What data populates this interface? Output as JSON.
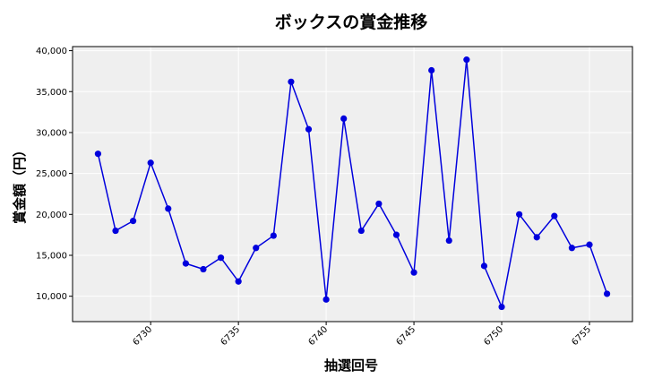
{
  "colors": {
    "line": "#0000dd",
    "marker": "#0000dd",
    "plot_background": "#efefef",
    "grid": "#ffffff"
  },
  "chart_data": {
    "type": "line",
    "title": "ボックスの賞金推移",
    "xlabel": "抽選回号",
    "ylabel": "賞金額（円）",
    "grid": true,
    "legend": "none",
    "xlim": [
      6725.55,
      6757.45
    ],
    "ylim": [
      6900,
      40500
    ],
    "x_ticks": [
      6730,
      6735,
      6740,
      6745,
      6750,
      6755
    ],
    "y_ticks": [
      10000,
      15000,
      20000,
      25000,
      30000,
      35000,
      40000
    ],
    "y_tick_labels": [
      "10,000",
      "15,000",
      "20,000",
      "25,000",
      "30,000",
      "35,000",
      "40,000"
    ],
    "x": [
      6727,
      6728,
      6729,
      6730,
      6731,
      6732,
      6733,
      6734,
      6735,
      6736,
      6737,
      6738,
      6739,
      6740,
      6741,
      6742,
      6743,
      6744,
      6745,
      6746,
      6747,
      6748,
      6749,
      6750,
      6751,
      6752,
      6753,
      6754,
      6755,
      6756
    ],
    "series": [
      {
        "values": [
          27400,
          18000,
          19200,
          26300,
          20700,
          14000,
          13300,
          14700,
          11800,
          15900,
          17400,
          36200,
          30400,
          9600,
          31700,
          18000,
          21300,
          17500,
          12900,
          37600,
          16800,
          38900,
          13700,
          8700,
          20000,
          17200,
          19800,
          15900,
          16300,
          10300
        ]
      }
    ]
  }
}
